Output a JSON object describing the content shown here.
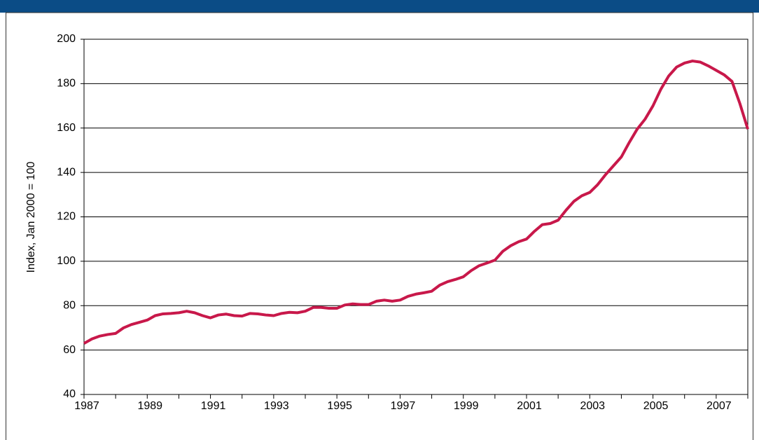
{
  "chart_data": {
    "type": "line",
    "ylabel": "Index, Jan 2000 = 100",
    "x": [
      1987,
      1987.25,
      1987.5,
      1987.75,
      1988,
      1988.25,
      1988.5,
      1988.75,
      1989,
      1989.25,
      1989.5,
      1989.75,
      1990,
      1990.25,
      1990.5,
      1990.75,
      1991,
      1991.25,
      1991.5,
      1991.75,
      1992,
      1992.25,
      1992.5,
      1992.75,
      1993,
      1993.25,
      1993.5,
      1993.75,
      1994,
      1994.25,
      1994.5,
      1994.75,
      1995,
      1995.25,
      1995.5,
      1995.75,
      1996,
      1996.25,
      1996.5,
      1996.75,
      1997,
      1997.25,
      1997.5,
      1997.75,
      1998,
      1998.25,
      1998.5,
      1998.75,
      1999,
      1999.25,
      1999.5,
      1999.75,
      2000,
      2000.25,
      2000.5,
      2000.75,
      2001,
      2001.25,
      2001.5,
      2001.75,
      2002,
      2002.25,
      2002.5,
      2002.75,
      2003,
      2003.25,
      2003.5,
      2003.75,
      2004,
      2004.25,
      2004.5,
      2004.75,
      2005,
      2005.25,
      2005.5,
      2005.75,
      2006,
      2006.25,
      2006.5,
      2006.75,
      2007,
      2007.25,
      2007.5,
      2007.75,
      2008
    ],
    "series": [
      {
        "color": "#c8184a",
        "values": [
          63,
          65,
          66.3,
          67,
          67.5,
          70,
          71.5,
          72.5,
          73.5,
          75.5,
          76.3,
          76.5,
          76.8,
          77.5,
          76.8,
          75.5,
          74.5,
          75.8,
          76.2,
          75.5,
          75.3,
          76.5,
          76.3,
          75.8,
          75.5,
          76.5,
          77,
          76.8,
          77.5,
          79.2,
          79.2,
          78.8,
          78.8,
          80.3,
          80.8,
          80.5,
          80.5,
          82,
          82.5,
          82,
          82.5,
          84.2,
          85.2,
          85.8,
          86.5,
          89.2,
          90.8,
          91.8,
          93,
          95.8,
          98,
          99.2,
          100.5,
          104.5,
          107,
          108.8,
          110,
          113.5,
          116.5,
          117,
          118.5,
          123,
          127,
          129.5,
          131,
          134.5,
          139,
          143,
          147,
          153.5,
          159.5,
          164,
          170,
          177.5,
          183.5,
          187.5,
          189.3,
          190.2,
          189.7,
          188,
          186,
          184,
          181,
          171,
          159.5
        ]
      }
    ],
    "xlim": [
      1987,
      2008
    ],
    "xticks": [
      1987,
      1989,
      1991,
      1993,
      1995,
      1997,
      1999,
      2001,
      2003,
      2005,
      2007
    ],
    "xminorticks": [
      1988,
      1990,
      1992,
      1994,
      1996,
      1998,
      2000,
      2002,
      2004,
      2006,
      2008
    ],
    "ylim": [
      40,
      200
    ],
    "yticks": [
      40,
      60,
      80,
      100,
      120,
      140,
      160,
      180,
      200
    ],
    "grid": true
  }
}
